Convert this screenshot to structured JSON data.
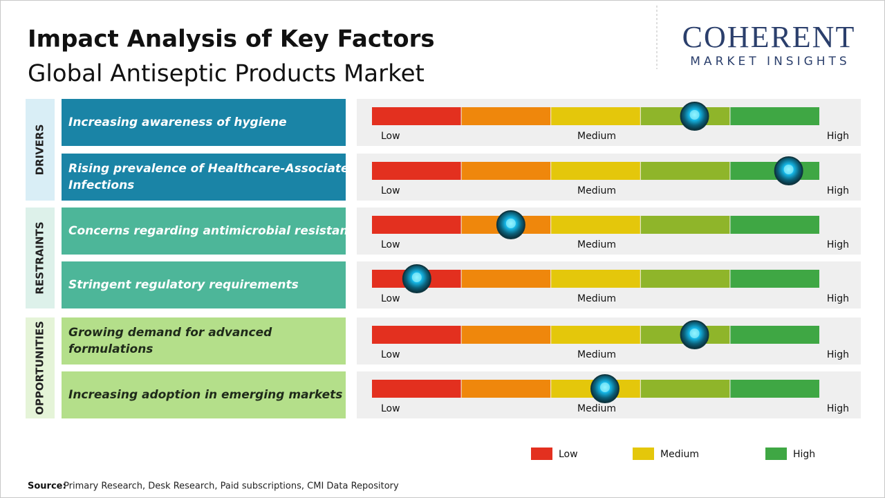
{
  "header": {
    "title": "Impact Analysis of Key Factors",
    "subtitle": "Global Antiseptic Products Market"
  },
  "logo": {
    "name": "COHERENT",
    "tagline": "MARKET INSIGHTS"
  },
  "scale_labels": [
    "Low",
    "Medium",
    "High"
  ],
  "bar_colors": [
    "#e3301f",
    "#ef870c",
    "#e4c70b",
    "#8fb52a",
    "#3fa744"
  ],
  "groups": [
    {
      "label": "DRIVERS",
      "box_color": "#1a84a6",
      "side_color": "#d9eef6",
      "text_color": "#ffffff",
      "factors": [
        {
          "text": "Increasing awareness of hygiene",
          "level": 0.72
        },
        {
          "text": [
            "Rising prevalence of Healthcare-Associated",
            "Infections"
          ],
          "level": 0.93
        }
      ]
    },
    {
      "label": "RESTRAINTS",
      "box_color": "#4db699",
      "side_color": "#ddf1ea",
      "text_color": "#ffffff",
      "factors": [
        {
          "text": "Concerns regarding antimicrobial resistance",
          "level": 0.31
        },
        {
          "text": "Stringent regulatory requirements",
          "level": 0.1
        }
      ]
    },
    {
      "label": "OPPORTUNITIES",
      "box_color": "#b4df8a",
      "side_color": "#e5f4d8",
      "text_color": "#1f2a1a",
      "factors": [
        {
          "text": [
            "Growing demand for advanced",
            "formulations"
          ],
          "level": 0.72
        },
        {
          "text": "Increasing adoption in emerging markets",
          "level": 0.52
        }
      ]
    }
  ],
  "legend": [
    {
      "label": "Low",
      "color": "#e3301f"
    },
    {
      "label": "Medium",
      "color": "#e4c70b"
    },
    {
      "label": "High",
      "color": "#3fa744"
    }
  ],
  "source": {
    "label": "Source:",
    "text": "Primary Research, Desk Research, Paid subscriptions, CMI Data Repository"
  }
}
